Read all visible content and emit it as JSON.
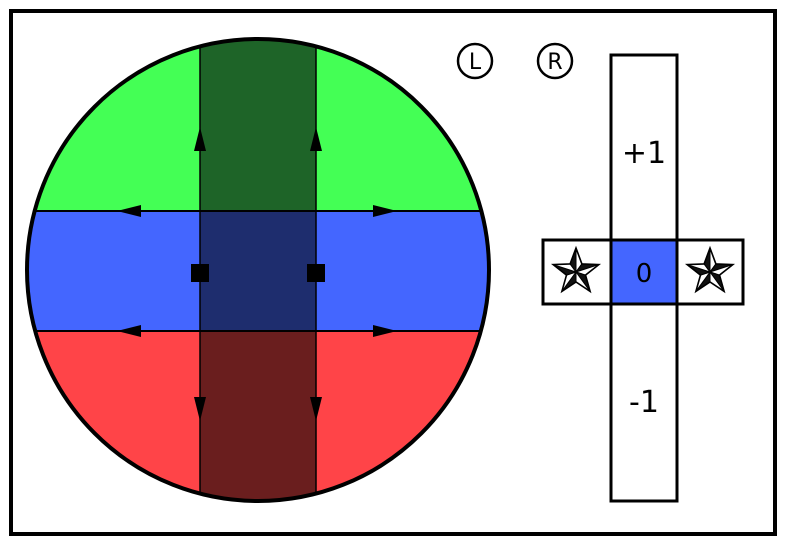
{
  "colors": {
    "frame": "#000000",
    "background": "#ffffff",
    "band_top": "#44ff55",
    "band_middle": "#4466ff",
    "band_bottom": "#ff4448",
    "column_top": "#1e6428",
    "column_middle": "#1e2d6e",
    "column_bottom": "#6a1e1e",
    "center_cell": "#4466ff"
  },
  "buttons": {
    "left": {
      "label": "L",
      "icon": "circle-letter-icon"
    },
    "right": {
      "label": "R",
      "icon": "circle-letter-icon"
    }
  },
  "scale": {
    "top_label": "+1",
    "center_label": "0",
    "bottom_label": "-1"
  },
  "side_cells": {
    "left_icon": "star-icon",
    "right_icon": "star-icon"
  },
  "arrows": {
    "vertical_up": "arrow-up-icon",
    "vertical_down": "arrow-down-icon",
    "horizontal_left": "arrow-left-icon",
    "horizontal_right": "arrow-right-icon",
    "handle": "square-handle-icon"
  }
}
